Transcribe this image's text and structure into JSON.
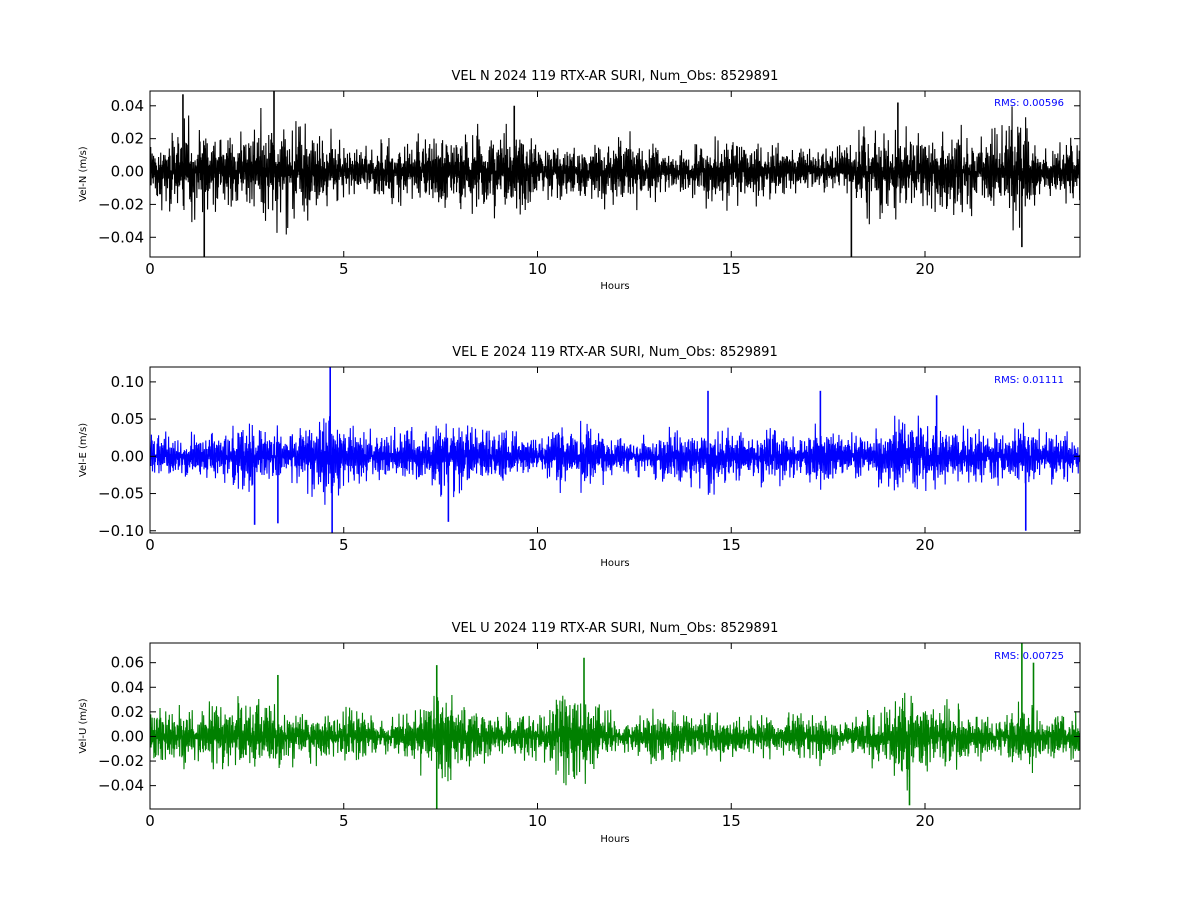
{
  "chart_data": [
    {
      "type": "line",
      "title": "VEL N 2024 119 RTX-AR  SURI, Num_Obs: 8529891",
      "xlabel": "Hours",
      "ylabel": "Vel-N (m/s)",
      "xlim": [
        0,
        24
      ],
      "ylim": [
        -0.052,
        0.049
      ],
      "xticks": [
        0,
        5,
        10,
        15,
        20
      ],
      "yticks": [
        -0.04,
        -0.02,
        0.0,
        0.02,
        0.04
      ],
      "ytick_labels": [
        "−0.04",
        "−0.02",
        "0.00",
        "0.02",
        "0.04"
      ],
      "xtick_labels": [
        "0",
        "5",
        "10",
        "15",
        "20"
      ],
      "annotation": "RMS:  0.00596",
      "color": "#000000",
      "annotation_color": "#0000ff",
      "grid": false,
      "series": [
        {
          "envelope_hours": [
            0,
            1,
            2,
            3,
            3.5,
            4,
            4.5,
            5,
            5.5,
            6,
            7,
            8,
            9,
            9.5,
            10,
            11,
            12,
            13,
            14,
            14.5,
            15,
            16,
            17,
            18,
            18.5,
            19,
            20,
            21,
            22,
            22.5,
            23,
            24
          ],
          "envelope_amplitude": [
            0.02,
            0.028,
            0.026,
            0.03,
            0.032,
            0.03,
            0.024,
            0.018,
            0.014,
            0.02,
            0.022,
            0.024,
            0.026,
            0.028,
            0.02,
            0.016,
            0.022,
            0.018,
            0.014,
            0.026,
            0.022,
            0.016,
            0.014,
            0.016,
            0.03,
            0.026,
            0.022,
            0.026,
            0.03,
            0.034,
            0.014,
            0.02
          ],
          "spikes": [
            {
              "x": 0.85,
              "y": 0.047
            },
            {
              "x": 1.4,
              "y": -0.052
            },
            {
              "x": 3.2,
              "y": 0.049
            },
            {
              "x": 18.1,
              "y": -0.052
            },
            {
              "x": 22.5,
              "y": -0.046
            },
            {
              "x": 9.4,
              "y": 0.04
            },
            {
              "x": 19.3,
              "y": 0.042
            }
          ]
        }
      ]
    },
    {
      "type": "line",
      "title": "VEL E 2024 119 RTX-AR  SURI, Num_Obs: 8529891",
      "xlabel": "Hours",
      "ylabel": "Vel-E (m/s)",
      "xlim": [
        0,
        24
      ],
      "ylim": [
        -0.103,
        0.12
      ],
      "xticks": [
        0,
        5,
        10,
        15,
        20
      ],
      "yticks": [
        -0.1,
        -0.05,
        0.0,
        0.05,
        0.1
      ],
      "ytick_labels": [
        "−0.10",
        "−0.05",
        "0.00",
        "0.05",
        "0.10"
      ],
      "xtick_labels": [
        "0",
        "5",
        "10",
        "15",
        "20"
      ],
      "annotation": "RMS:  0.01111",
      "color": "#0000ff",
      "annotation_color": "#0000ff",
      "grid": false,
      "series": [
        {
          "envelope_hours": [
            0,
            1,
            2,
            2.7,
            3,
            3.5,
            4,
            4.5,
            5,
            5.5,
            6,
            7,
            7.5,
            8,
            9,
            10,
            10.5,
            11,
            11.5,
            12,
            13,
            14,
            14.5,
            15,
            16,
            17,
            18,
            19,
            19.5,
            20,
            21,
            22,
            22.5,
            23,
            24
          ],
          "envelope_amplitude": [
            0.03,
            0.032,
            0.036,
            0.05,
            0.04,
            0.032,
            0.05,
            0.06,
            0.045,
            0.036,
            0.03,
            0.04,
            0.06,
            0.05,
            0.036,
            0.022,
            0.04,
            0.05,
            0.04,
            0.026,
            0.032,
            0.04,
            0.055,
            0.036,
            0.036,
            0.04,
            0.036,
            0.04,
            0.055,
            0.045,
            0.036,
            0.036,
            0.05,
            0.032,
            0.03
          ],
          "spikes": [
            {
              "x": 4.65,
              "y": 0.12
            },
            {
              "x": 4.7,
              "y": -0.103
            },
            {
              "x": 22.6,
              "y": -0.1
            },
            {
              "x": 3.3,
              "y": -0.09
            },
            {
              "x": 14.4,
              "y": 0.088
            },
            {
              "x": 17.3,
              "y": 0.088
            },
            {
              "x": 20.3,
              "y": 0.082
            },
            {
              "x": 7.7,
              "y": -0.088
            },
            {
              "x": 2.7,
              "y": -0.092
            }
          ]
        }
      ]
    },
    {
      "type": "line",
      "title": "VEL U 2024 119 RTX-AR  SURI, Num_Obs: 8529891",
      "xlabel": "Hours",
      "ylabel": "Vel-U (m/s)",
      "xlim": [
        0,
        24
      ],
      "ylim": [
        -0.059,
        0.076
      ],
      "xticks": [
        0,
        5,
        10,
        15,
        20
      ],
      "yticks": [
        -0.04,
        -0.02,
        0.0,
        0.02,
        0.04,
        0.06
      ],
      "ytick_labels": [
        "−0.04",
        "−0.02",
        "0.00",
        "0.02",
        "0.04",
        "0.06"
      ],
      "xtick_labels": [
        "0",
        "5",
        "10",
        "15",
        "20"
      ],
      "annotation": "RMS:  0.00725",
      "color": "#008000",
      "annotation_color": "#0000ff",
      "grid": false,
      "series": [
        {
          "envelope_hours": [
            0,
            1,
            2,
            2.5,
            3,
            3.5,
            4,
            5,
            5.5,
            6,
            7,
            7.5,
            8,
            9,
            10,
            10.5,
            11,
            11.5,
            12,
            13,
            14,
            15,
            16,
            17,
            18,
            19,
            19.5,
            20,
            21,
            22,
            22.5,
            23,
            24
          ],
          "envelope_amplitude": [
            0.02,
            0.024,
            0.026,
            0.032,
            0.03,
            0.022,
            0.02,
            0.024,
            0.02,
            0.012,
            0.026,
            0.034,
            0.03,
            0.02,
            0.018,
            0.03,
            0.04,
            0.028,
            0.014,
            0.02,
            0.022,
            0.016,
            0.018,
            0.022,
            0.014,
            0.026,
            0.036,
            0.03,
            0.022,
            0.014,
            0.034,
            0.02,
            0.022
          ],
          "spikes": [
            {
              "x": 22.5,
              "y": 0.076
            },
            {
              "x": 7.4,
              "y": -0.059
            },
            {
              "x": 11.2,
              "y": 0.064
            },
            {
              "x": 3.3,
              "y": 0.05
            },
            {
              "x": 22.8,
              "y": 0.06
            },
            {
              "x": 19.6,
              "y": -0.056
            },
            {
              "x": 7.4,
              "y": 0.058
            }
          ]
        }
      ]
    }
  ]
}
